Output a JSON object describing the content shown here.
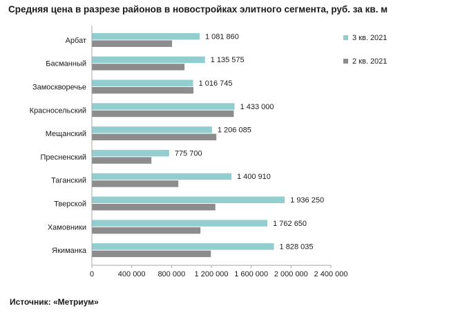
{
  "chart_data": {
    "type": "bar",
    "orientation": "horizontal",
    "title": "Средняя цена в разрезе районов в новостройках элитного сегмента, руб. за кв. м",
    "source": "Источник: «Метриум»",
    "categories": [
      "Арбат",
      "Басманный",
      "Замоскворечье",
      "Красносельский",
      "Мещанский",
      "Пресненский",
      "Таганский",
      "Тверской",
      "Хамовники",
      "Якиманка"
    ],
    "series": [
      {
        "name": "3 кв. 2021",
        "color": "#92cdd0",
        "values": [
          1081860,
          1135575,
          1016745,
          1433000,
          1206085,
          775700,
          1400910,
          1936250,
          1762650,
          1828035
        ],
        "labels": [
          "1 081 860",
          "1 135 575",
          "1 016 745",
          "1 433 000",
          "1 206 085",
          "775 700",
          "1 400 910",
          "1 936 250",
          "1 762 650",
          "1 828 035"
        ]
      },
      {
        "name": "2 кв. 2021",
        "color": "#8c8c8c",
        "values": [
          805000,
          930000,
          1020000,
          1425000,
          1250000,
          598000,
          868000,
          1240000,
          1090000,
          1195000
        ]
      }
    ],
    "xlim": [
      0,
      2400000
    ],
    "xticks": [
      0,
      400000,
      800000,
      1200000,
      1600000,
      2000000,
      2400000
    ],
    "xtick_labels": [
      "0",
      "400 000",
      "800 000",
      "1 200 000",
      "1 600 000",
      "2 000 000",
      "2 400 000"
    ],
    "grid": false,
    "legend_position": "right"
  }
}
